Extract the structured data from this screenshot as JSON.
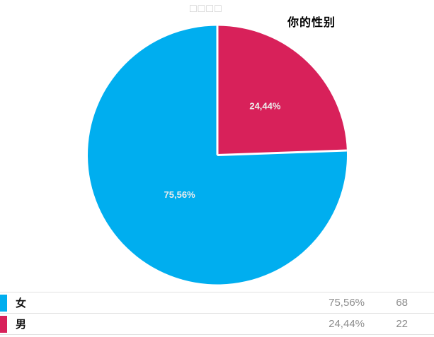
{
  "page": {
    "header_placeholder": "□□□□"
  },
  "chart_data": {
    "type": "pie",
    "title": "你的性别",
    "legend_position": "bottom-table",
    "grid": false,
    "start_angle_deg": 0,
    "direction": "minor-slice-clockwise-from-top",
    "series": [
      {
        "name": "女",
        "value": 75.56,
        "percent_label": "75,56%",
        "count": 68,
        "color": "#00AEEF"
      },
      {
        "name": "男",
        "value": 24.44,
        "percent_label": "24,44%",
        "count": 22,
        "color": "#D8215A"
      }
    ],
    "colors": {
      "slice_label_text": "#ECECEC",
      "separator": "#FFFFFF",
      "value_text": "#8C8C8C",
      "border": "#E2E2E2"
    }
  }
}
